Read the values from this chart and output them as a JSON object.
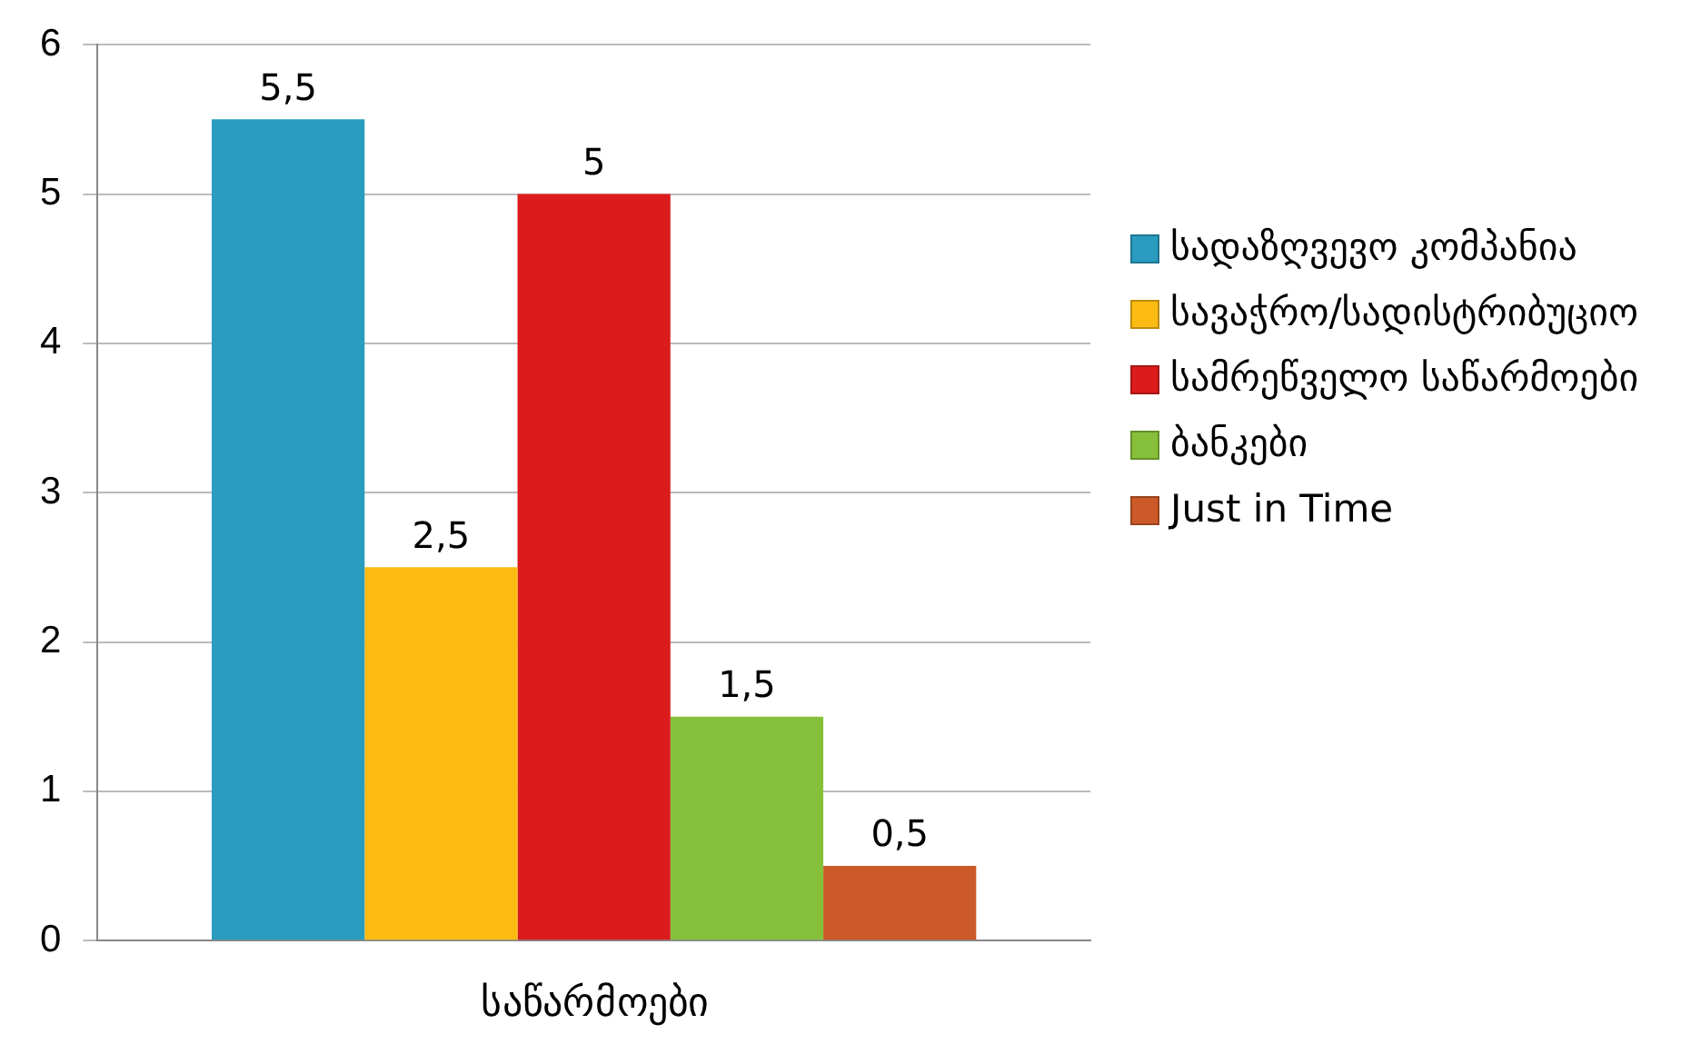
{
  "chart_data": {
    "type": "bar",
    "categories": [
      "საწარმოები"
    ],
    "series": [
      {
        "name": "სადაზღვევო კომპანია",
        "color": "#2a9cc0",
        "values": [
          5.5
        ],
        "value_labels": [
          "5,5"
        ]
      },
      {
        "name": "სავაჭრო/სადისტრიბუციო",
        "color": "#fbbb12",
        "values": [
          2.5
        ],
        "value_labels": [
          "2,5"
        ]
      },
      {
        "name": "სამრეწველო საწარმოები",
        "color": "#dc1c1c",
        "values": [
          5
        ],
        "value_labels": [
          "5"
        ]
      },
      {
        "name": "ბანკები",
        "color": "#86c03a",
        "values": [
          1.5
        ],
        "value_labels": [
          "1,5"
        ]
      },
      {
        "name": "Just in Time",
        "color": "#cc5a28",
        "values": [
          0.5
        ],
        "value_labels": [
          "0,5"
        ]
      }
    ],
    "ylim": [
      0,
      6
    ],
    "yticks": [
      0,
      1,
      2,
      3,
      4,
      5,
      6
    ],
    "grid": "y",
    "legend": "right"
  }
}
